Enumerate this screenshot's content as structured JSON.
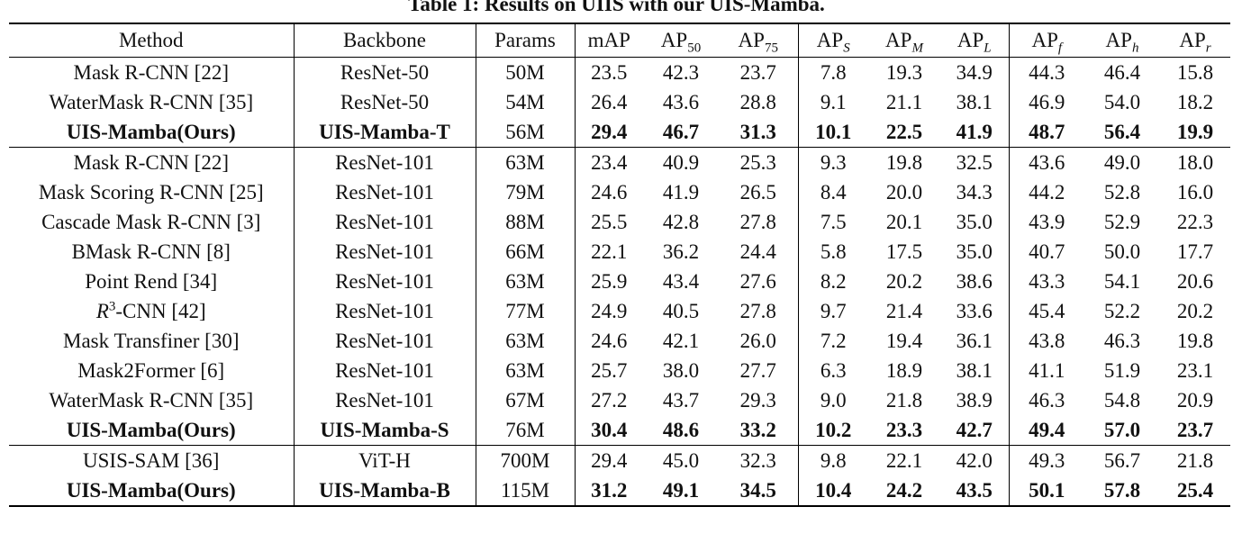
{
  "caption": "Table 1: Results on UIIS with our UIS-Mamba.",
  "headers": {
    "method": "Method",
    "backbone": "Backbone",
    "params": "Params",
    "map": "mAP",
    "ap": "AP",
    "ap50_sub": "50",
    "ap75_sub": "75",
    "aps_sub": "S",
    "apm_sub": "M",
    "apl_sub": "L",
    "apf_sub": "f",
    "aph_sub": "h",
    "apr_sub": "r"
  },
  "r3_method": {
    "base": "R",
    "sup": "3",
    "rest": "-CNN [42]"
  },
  "groups": [
    [
      {
        "method": "Mask R-CNN [22]",
        "backbone": "ResNet-50",
        "params": "50M",
        "vals": [
          "23.5",
          "42.3",
          "23.7",
          "7.8",
          "19.3",
          "34.9",
          "44.3",
          "46.4",
          "15.8"
        ],
        "bold": false
      },
      {
        "method": "WaterMask R-CNN [35]",
        "backbone": "ResNet-50",
        "params": "54M",
        "vals": [
          "26.4",
          "43.6",
          "28.8",
          "9.1",
          "21.1",
          "38.1",
          "46.9",
          "54.0",
          "18.2"
        ],
        "bold": false
      },
      {
        "method": "UIS-Mamba(Ours)",
        "backbone": "UIS-Mamba-T",
        "params": "56M",
        "vals": [
          "29.4",
          "46.7",
          "31.3",
          "10.1",
          "22.5",
          "41.9",
          "48.7",
          "56.4",
          "19.9"
        ],
        "bold": true
      }
    ],
    [
      {
        "method": "Mask R-CNN [22]",
        "backbone": "ResNet-101",
        "params": "63M",
        "vals": [
          "23.4",
          "40.9",
          "25.3",
          "9.3",
          "19.8",
          "32.5",
          "43.6",
          "49.0",
          "18.0"
        ],
        "bold": false
      },
      {
        "method": "Mask Scoring R-CNN [25]",
        "backbone": "ResNet-101",
        "params": "79M",
        "vals": [
          "24.6",
          "41.9",
          "26.5",
          "8.4",
          "20.0",
          "34.3",
          "44.2",
          "52.8",
          "16.0"
        ],
        "bold": false
      },
      {
        "method": "Cascade Mask R-CNN [3]",
        "backbone": "ResNet-101",
        "params": "88M",
        "vals": [
          "25.5",
          "42.8",
          "27.8",
          "7.5",
          "20.1",
          "35.0",
          "43.9",
          "52.9",
          "22.3"
        ],
        "bold": false
      },
      {
        "method": "BMask R-CNN [8]",
        "backbone": "ResNet-101",
        "params": "66M",
        "vals": [
          "22.1",
          "36.2",
          "24.4",
          "5.8",
          "17.5",
          "35.0",
          "40.7",
          "50.0",
          "17.7"
        ],
        "bold": false
      },
      {
        "method": "Point Rend [34]",
        "backbone": "ResNet-101",
        "params": "63M",
        "vals": [
          "25.9",
          "43.4",
          "27.6",
          "8.2",
          "20.2",
          "38.6",
          "43.3",
          "54.1",
          "20.6"
        ],
        "bold": false
      },
      {
        "method": "R3-CNN [42]",
        "backbone": "ResNet-101",
        "params": "77M",
        "vals": [
          "24.9",
          "40.5",
          "27.8",
          "9.7",
          "21.4",
          "33.6",
          "45.4",
          "52.2",
          "20.2"
        ],
        "bold": false,
        "special": "r3"
      },
      {
        "method": "Mask Transfiner [30]",
        "backbone": "ResNet-101",
        "params": "63M",
        "vals": [
          "24.6",
          "42.1",
          "26.0",
          "7.2",
          "19.4",
          "36.1",
          "43.8",
          "46.3",
          "19.8"
        ],
        "bold": false
      },
      {
        "method": "Mask2Former [6]",
        "backbone": "ResNet-101",
        "params": "63M",
        "vals": [
          "25.7",
          "38.0",
          "27.7",
          "6.3",
          "18.9",
          "38.1",
          "41.1",
          "51.9",
          "23.1"
        ],
        "bold": false
      },
      {
        "method": "WaterMask R-CNN [35]",
        "backbone": "ResNet-101",
        "params": "67M",
        "vals": [
          "27.2",
          "43.7",
          "29.3",
          "9.0",
          "21.8",
          "38.9",
          "46.3",
          "54.8",
          "20.9"
        ],
        "bold": false
      },
      {
        "method": "UIS-Mamba(Ours)",
        "backbone": "UIS-Mamba-S",
        "params": "76M",
        "vals": [
          "30.4",
          "48.6",
          "33.2",
          "10.2",
          "23.3",
          "42.7",
          "49.4",
          "57.0",
          "23.7"
        ],
        "bold": true
      }
    ],
    [
      {
        "method": "USIS-SAM [36]",
        "backbone": "ViT-H",
        "params": "700M",
        "vals": [
          "29.4",
          "45.0",
          "32.3",
          "9.8",
          "22.1",
          "42.0",
          "49.3",
          "56.7",
          "21.8"
        ],
        "bold": false
      },
      {
        "method": "UIS-Mamba(Ours)",
        "backbone": "UIS-Mamba-B",
        "params": "115M",
        "vals": [
          "31.2",
          "49.1",
          "34.5",
          "10.4",
          "24.2",
          "43.5",
          "50.1",
          "57.8",
          "25.4"
        ],
        "bold": true
      }
    ]
  ]
}
